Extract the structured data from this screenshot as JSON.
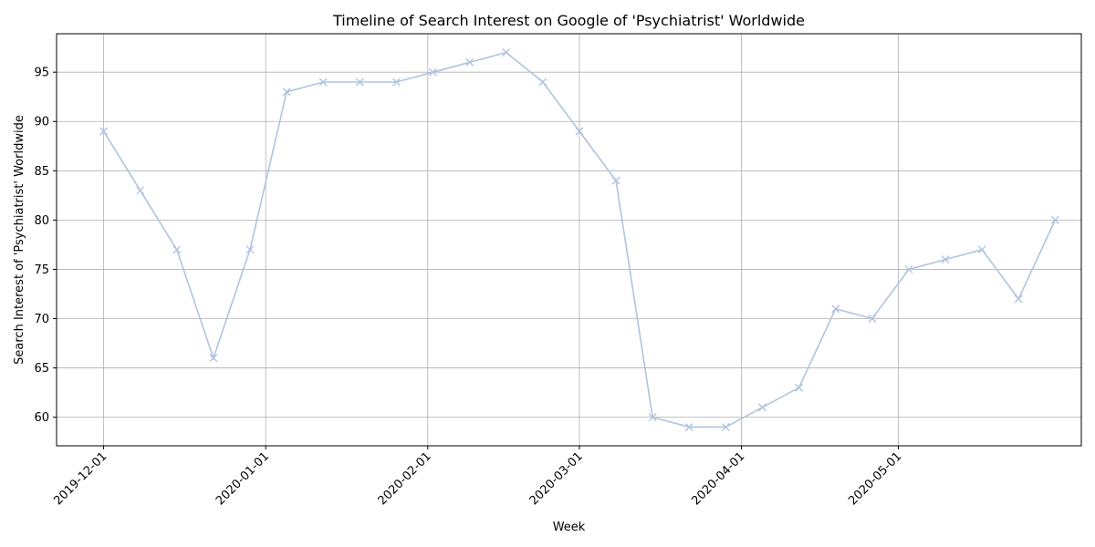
{
  "chart_data": {
    "type": "line",
    "title": "Timeline of Search Interest on Google of 'Psychiatrist' Worldwide",
    "xlabel": "Week",
    "ylabel": "Search Interest of 'Psychiatrist' Worldwide",
    "grid": true,
    "ylim": [
      57.1,
      98.9
    ],
    "xlim": [
      "2019-11-22",
      "2020-06-05"
    ],
    "x_ticks": [
      "2019-12-01",
      "2020-01-01",
      "2020-02-01",
      "2020-03-01",
      "2020-04-01",
      "2020-05-01"
    ],
    "y_ticks": [
      60,
      65,
      70,
      75,
      80,
      85,
      90,
      95
    ],
    "series": [
      {
        "color": "#b0c4de",
        "marker": "x",
        "x": [
          "2019-12-01",
          "2019-12-08",
          "2019-12-15",
          "2019-12-22",
          "2019-12-29",
          "2020-01-05",
          "2020-01-12",
          "2020-01-19",
          "2020-01-26",
          "2020-02-02",
          "2020-02-09",
          "2020-02-16",
          "2020-02-23",
          "2020-03-01",
          "2020-03-08",
          "2020-03-15",
          "2020-03-22",
          "2020-03-29",
          "2020-04-05",
          "2020-04-12",
          "2020-04-19",
          "2020-04-26",
          "2020-05-03",
          "2020-05-10",
          "2020-05-17",
          "2020-05-24",
          "2020-05-31"
        ],
        "values": [
          89,
          83,
          77,
          66,
          77,
          93,
          94,
          94,
          94,
          95,
          96,
          97,
          94,
          89,
          84,
          60,
          59,
          59,
          61,
          63,
          71,
          70,
          75,
          76,
          77,
          72,
          80
        ]
      }
    ]
  }
}
